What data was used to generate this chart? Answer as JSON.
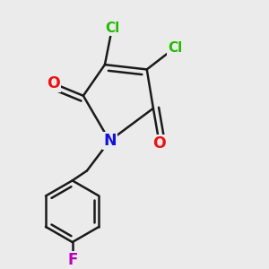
{
  "background_color": "#ebebeb",
  "bond_color": "#1a1a1a",
  "bond_width": 1.8,
  "atom_colors": {
    "O": "#ee1111",
    "N": "#1111dd",
    "Cl": "#22bb00",
    "F": "#bb00bb",
    "C": "#1a1a1a"
  },
  "font_size_atom": 11.5
}
